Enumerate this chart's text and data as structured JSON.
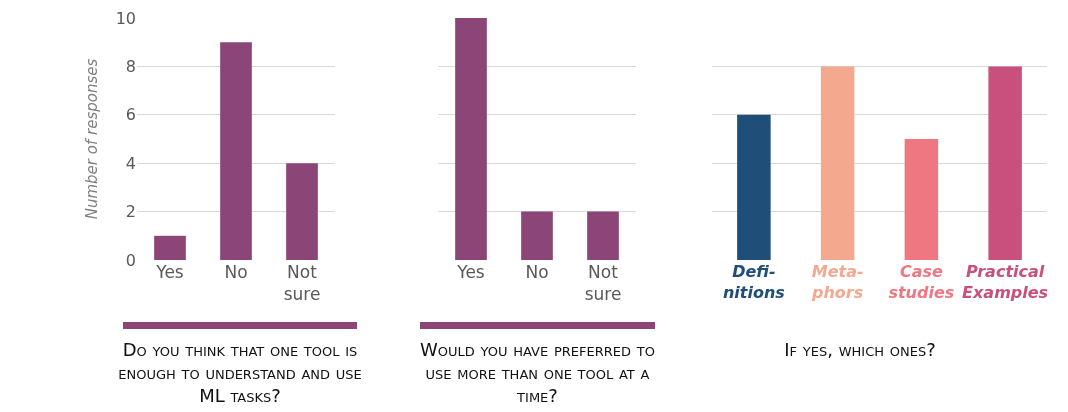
{
  "chart_data": [
    {
      "type": "bar",
      "ylabel": "Number of responses",
      "xlabel": "Do you think that one tool is enough to understand and use ML tasks?",
      "categories": [
        "Yes",
        "No",
        "Not sure"
      ],
      "values": [
        1,
        9,
        4
      ],
      "color": "#8b4577",
      "ylim": [
        0,
        10
      ],
      "yticks": [
        0,
        2,
        4,
        6,
        8,
        10
      ],
      "grid": "y"
    },
    {
      "type": "bar",
      "xlabel": "Would you have preferred to use more than one tool at a time?",
      "categories": [
        "Yes",
        "No",
        "Not sure"
      ],
      "values": [
        10,
        2,
        2
      ],
      "color": "#8b4577",
      "ylim": [
        0,
        10
      ],
      "yticks": [
        0,
        2,
        4,
        6,
        8,
        10
      ],
      "grid": "y",
      "tick_labels": "x"
    },
    {
      "type": "bar",
      "xlabel": "If yes, which ones?",
      "categories": [
        "Defi-nitions",
        "Meta-phors",
        "Case studies",
        "Practical Examples"
      ],
      "values": [
        6,
        8,
        5,
        8
      ],
      "colors": [
        "#1f4e79",
        "#f4a98f",
        "#ee7781",
        "#c9507c"
      ],
      "ylim": [
        0,
        10
      ],
      "yticks": [
        0,
        2,
        4,
        6,
        8,
        10
      ],
      "grid": "y",
      "tick_labels": "x"
    }
  ]
}
